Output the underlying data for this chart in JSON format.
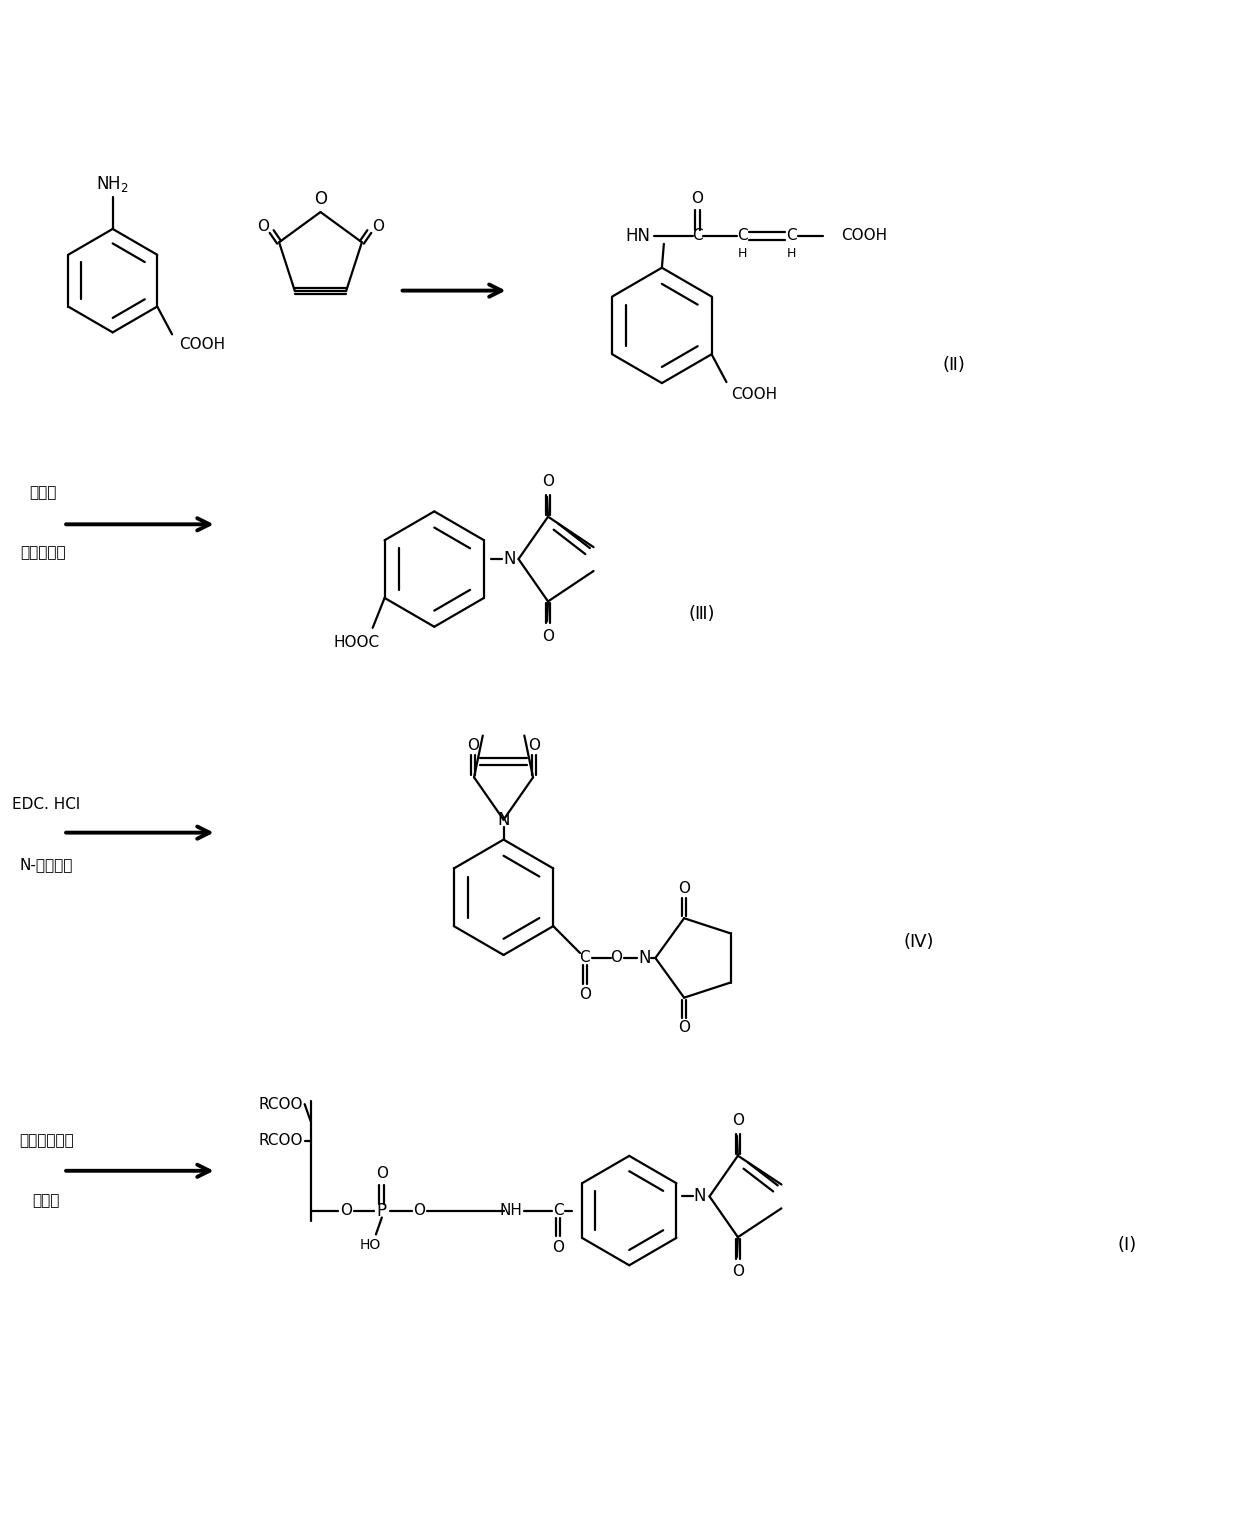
{
  "bg": "#ffffff",
  "lc": "#000000",
  "step2_l1": "醛酸酝",
  "step2_l2": "无水醛酸钓",
  "step3_l1": "EDC. HCl",
  "step3_l2": "N-甲基咐啊",
  "step4_l1": "磷脂酰乙醇胺",
  "step4_l2": "有机碱",
  "lbl_II": "(Ⅱ)",
  "lbl_III": "(Ⅲ)",
  "lbl_IV": "(Ⅳ)",
  "lbl_I": "(Ⅰ)",
  "fw": 12.4,
  "fh": 15.33,
  "dpi": 100
}
